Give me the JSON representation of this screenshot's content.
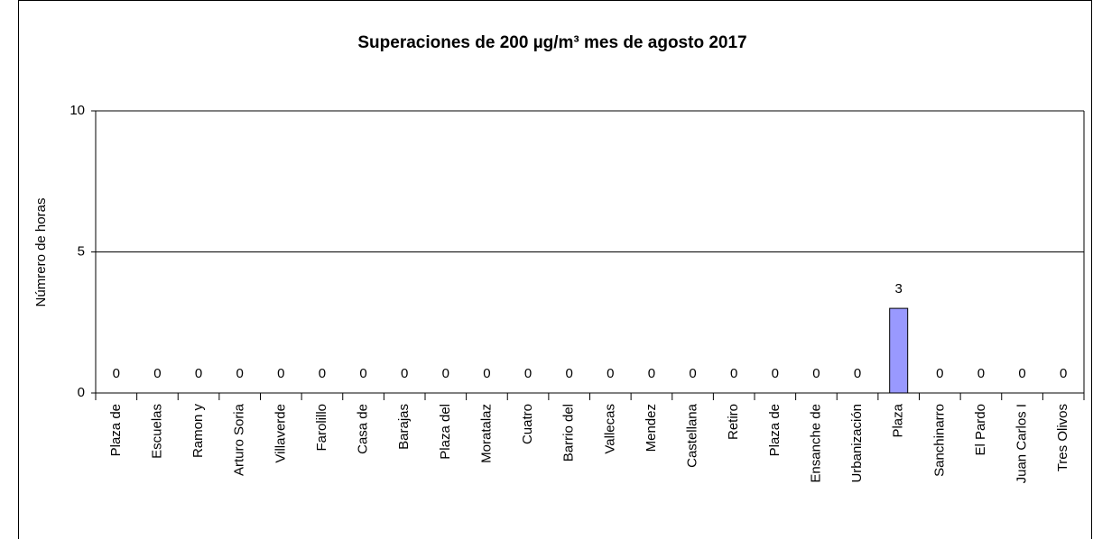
{
  "chart_data": {
    "type": "bar",
    "title": "Superaciones de 200 µg/m³ mes de agosto 2017",
    "y_label": "Númrero de horas",
    "categories": [
      "Plaza de",
      "Escuelas",
      "Ramon y",
      "Arturo Soria",
      "Villaverde",
      "Farolillo",
      "Casa de",
      "Barajas",
      "Plaza del",
      "Moratalaz",
      "Cuatro",
      "Barrio del",
      "Vallecas",
      "Mendez",
      "Castellana",
      "Retiro",
      "Plaza de",
      "Ensanche de",
      "Urbanización",
      "Plaza",
      "Sanchinarro",
      "El Pardo",
      "Juan Carlos I",
      "Tres Olivos"
    ],
    "values": [
      0,
      0,
      0,
      0,
      0,
      0,
      0,
      0,
      0,
      0,
      0,
      0,
      0,
      0,
      0,
      0,
      0,
      0,
      0,
      3,
      0,
      0,
      0,
      0
    ],
    "color": "#9999ff",
    "ylim": [
      0,
      10
    ],
    "yticks": [
      0,
      5,
      10
    ],
    "grid": true
  }
}
